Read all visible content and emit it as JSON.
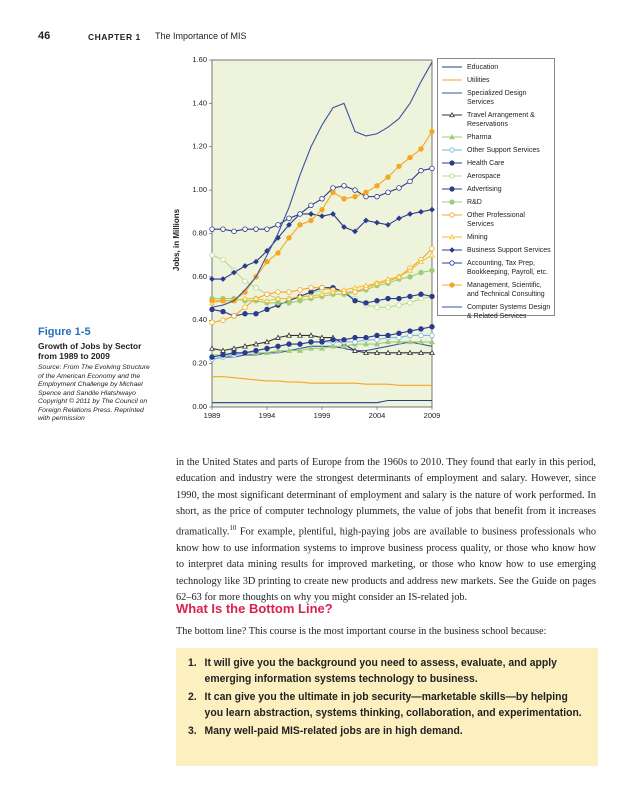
{
  "header": {
    "page_number": "46",
    "chapter": "CHAPTER 1",
    "chapter_title": "The Importance of MIS"
  },
  "figure": {
    "label": "Figure 1-5",
    "caption": "Growth of Jobs by Sector from 1989 to 2009",
    "source": "Source: From The Evolving Structure of the American Economy and the Employment Challenge by Michael Spence and Sandile Hlatshwayo Copyright © 2011 by The Council on Foreign Relations Press. Reprinted with permission"
  },
  "chart_data": {
    "type": "line",
    "y_label": "Jobs, in Millions",
    "x": [
      1989,
      1990,
      1991,
      1992,
      1993,
      1994,
      1995,
      1996,
      1997,
      1998,
      1999,
      2000,
      2001,
      2002,
      2003,
      2004,
      2005,
      2006,
      2007,
      2008,
      2009
    ],
    "xlim": [
      1989,
      2009
    ],
    "xticks": [
      1989,
      1994,
      1999,
      2004,
      2009
    ],
    "ylim": [
      0,
      1.6
    ],
    "yticks": [
      {
        "value": 0,
        "label": "0.00"
      },
      {
        "value": 0.2,
        "label": "0.20"
      },
      {
        "value": 0.4,
        "label": "0.40"
      },
      {
        "value": 0.6,
        "label": "0.60"
      },
      {
        "value": 0.8,
        "label": "0.80"
      },
      {
        "value": 1.0,
        "label": "1.00"
      },
      {
        "value": 1.2,
        "label": "1.20"
      },
      {
        "value": 1.4,
        "label": "1.40"
      },
      {
        "value": 1.6,
        "label": "1.60"
      }
    ],
    "series": [
      {
        "name": "Education",
        "color": "#2b3a8c",
        "marker": "none",
        "values": [
          0.02,
          0.02,
          0.02,
          0.02,
          0.02,
          0.02,
          0.02,
          0.02,
          0.02,
          0.02,
          0.02,
          0.02,
          0.02,
          0.02,
          0.02,
          0.02,
          0.03,
          0.03,
          0.03,
          0.03,
          0.03
        ]
      },
      {
        "name": "Utilities",
        "color": "#f5a623",
        "marker": "none",
        "values": [
          0.14,
          0.14,
          0.135,
          0.13,
          0.125,
          0.12,
          0.12,
          0.115,
          0.115,
          0.11,
          0.11,
          0.11,
          0.11,
          0.11,
          0.105,
          0.105,
          0.105,
          0.1,
          0.1,
          0.1,
          0.1
        ]
      },
      {
        "name": "Specialized Design Services",
        "color": "#3a53a4",
        "marker": "none",
        "values": [
          0.22,
          0.23,
          0.23,
          0.24,
          0.24,
          0.25,
          0.25,
          0.26,
          0.27,
          0.28,
          0.28,
          0.28,
          0.27,
          0.26,
          0.26,
          0.27,
          0.28,
          0.29,
          0.3,
          0.29,
          0.28
        ]
      },
      {
        "name": "Travel Arrangement & Reservations",
        "color": "#333333",
        "marker": "triangle-open",
        "values": [
          0.27,
          0.26,
          0.27,
          0.28,
          0.29,
          0.3,
          0.32,
          0.33,
          0.33,
          0.33,
          0.32,
          0.32,
          0.29,
          0.26,
          0.25,
          0.25,
          0.25,
          0.25,
          0.25,
          0.25,
          0.25
        ]
      },
      {
        "name": "Pharma",
        "color": "#9dcc7a",
        "marker": "triangle",
        "values": [
          0.24,
          0.24,
          0.24,
          0.25,
          0.25,
          0.25,
          0.26,
          0.26,
          0.26,
          0.27,
          0.27,
          0.28,
          0.28,
          0.29,
          0.29,
          0.29,
          0.3,
          0.3,
          0.3,
          0.3,
          0.3
        ]
      },
      {
        "name": "Other Support Services",
        "color": "#7ab8e6",
        "marker": "circle-open",
        "values": [
          0.22,
          0.23,
          0.24,
          0.25,
          0.26,
          0.27,
          0.28,
          0.29,
          0.29,
          0.3,
          0.3,
          0.3,
          0.3,
          0.3,
          0.31,
          0.31,
          0.32,
          0.32,
          0.33,
          0.33,
          0.33
        ]
      },
      {
        "name": "Health Care",
        "color": "#2b3a8c",
        "marker": "circle",
        "values": [
          0.23,
          0.24,
          0.25,
          0.25,
          0.26,
          0.27,
          0.28,
          0.29,
          0.29,
          0.3,
          0.3,
          0.31,
          0.31,
          0.32,
          0.32,
          0.33,
          0.33,
          0.34,
          0.35,
          0.36,
          0.37
        ]
      },
      {
        "name": "Aerospace",
        "color": "#b8d98f",
        "marker": "circle-open",
        "values": [
          0.7,
          0.68,
          0.63,
          0.58,
          0.55,
          0.52,
          0.5,
          0.5,
          0.5,
          0.52,
          0.54,
          0.55,
          0.53,
          0.5,
          0.47,
          0.46,
          0.46,
          0.47,
          0.48,
          0.5,
          0.51
        ]
      },
      {
        "name": "Advertising",
        "color": "#2b3a8c",
        "marker": "circle",
        "values": [
          0.45,
          0.44,
          0.42,
          0.43,
          0.43,
          0.45,
          0.47,
          0.49,
          0.51,
          0.53,
          0.55,
          0.55,
          0.53,
          0.49,
          0.48,
          0.49,
          0.5,
          0.5,
          0.51,
          0.52,
          0.51
        ]
      },
      {
        "name": "R&D",
        "color": "#9dcc7a",
        "marker": "circle",
        "values": [
          0.5,
          0.5,
          0.5,
          0.49,
          0.49,
          0.48,
          0.48,
          0.48,
          0.49,
          0.5,
          0.51,
          0.52,
          0.52,
          0.53,
          0.54,
          0.56,
          0.57,
          0.59,
          0.6,
          0.62,
          0.63
        ]
      },
      {
        "name": "Other Professional Services",
        "color": "#f5a623",
        "marker": "circle-open",
        "values": [
          0.39,
          0.4,
          0.42,
          0.46,
          0.5,
          0.52,
          0.53,
          0.53,
          0.54,
          0.55,
          0.55,
          0.54,
          0.53,
          0.53,
          0.55,
          0.57,
          0.58,
          0.6,
          0.64,
          0.68,
          0.73
        ]
      },
      {
        "name": "Mining",
        "color": "#f2c12e",
        "marker": "triangle-open",
        "values": [
          0.48,
          0.49,
          0.49,
          0.5,
          0.5,
          0.49,
          0.5,
          0.5,
          0.51,
          0.51,
          0.52,
          0.53,
          0.54,
          0.55,
          0.56,
          0.57,
          0.59,
          0.6,
          0.63,
          0.67,
          0.7
        ]
      },
      {
        "name": "Business Support Services",
        "color": "#2b3a8c",
        "marker": "diamond",
        "values": [
          0.59,
          0.59,
          0.62,
          0.65,
          0.67,
          0.72,
          0.78,
          0.84,
          0.89,
          0.89,
          0.88,
          0.89,
          0.83,
          0.81,
          0.86,
          0.85,
          0.84,
          0.87,
          0.89,
          0.9,
          0.91
        ]
      },
      {
        "name": "Accounting, Tax Prep, Bookkeeping, Payroll, etc.",
        "color": "#2b3a8c",
        "marker": "circle-open",
        "values": [
          0.82,
          0.82,
          0.81,
          0.82,
          0.82,
          0.82,
          0.84,
          0.87,
          0.89,
          0.93,
          0.96,
          1.01,
          1.02,
          1.0,
          0.97,
          0.97,
          0.99,
          1.01,
          1.04,
          1.09,
          1.1
        ]
      },
      {
        "name": "Management, Scientific, and Technical Consulting",
        "color": "#f5a623",
        "marker": "circle",
        "values": [
          0.49,
          0.49,
          0.49,
          0.53,
          0.6,
          0.67,
          0.71,
          0.78,
          0.84,
          0.86,
          0.91,
          0.99,
          0.96,
          0.97,
          0.99,
          1.02,
          1.06,
          1.11,
          1.15,
          1.19,
          1.27
        ]
      },
      {
        "name": "Computer Systems Design & Related Services",
        "color": "#3a53a4",
        "marker": "none",
        "values": [
          0.46,
          0.47,
          0.49,
          0.54,
          0.6,
          0.7,
          0.8,
          0.92,
          1.07,
          1.2,
          1.3,
          1.38,
          1.4,
          1.27,
          1.25,
          1.26,
          1.29,
          1.33,
          1.4,
          1.5,
          1.59
        ]
      }
    ]
  },
  "body": {
    "paragraph_1_before": "in the United States and parts of Europe from the 1960s to 2010. They found that early in this period, education and industry were the strongest determinants of employment and salary. However, since 1990, the most significant determinant of employment and salary is the nature of work performed. In short, as the price of computer technology plummets, the value of jobs that benefit from it increases dramatically.",
    "footnote": "10",
    "paragraph_1_after": " For example, plentiful, high-paying jobs are available to business professionals who know how to use information systems to improve business process quality, or those who know how to interpret data mining results for improved marketing, or those who know how to use emerging technology like 3D printing to create new products and address new markets. See the Guide on pages 62–63 for more thoughts on why you might consider an IS-related job.",
    "heading": "What Is the Bottom Line?",
    "paragraph_2": "The bottom line? This course is the most important course in the business school because:",
    "list": [
      {
        "number": "1.",
        "text": "It will give you the background you need to assess, evaluate, and apply emerging information systems technology to business."
      },
      {
        "number": "2.",
        "text": "It can give you the ultimate in job security—marketable skills—by helping you learn abstraction, systems thinking, collaboration, and experimentation."
      },
      {
        "number": "3.",
        "text": "Many well-paid MIS-related jobs are in high demand."
      }
    ]
  }
}
